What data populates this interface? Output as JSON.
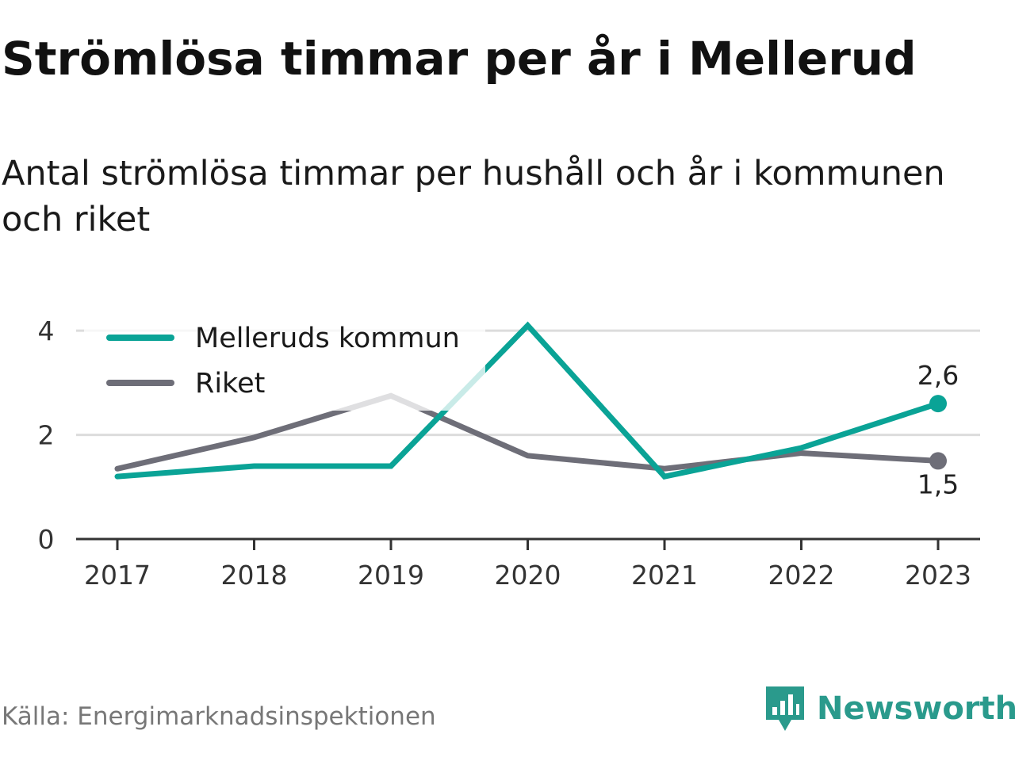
{
  "header": {
    "title": "Strömlösa timmar per år i Mellerud",
    "subtitle": "Antal strömlösa timmar per hushåll och år i kommunen och riket"
  },
  "footer": {
    "source": "Källa: Energimarknadsinspektionen",
    "brand": "Newsworthy",
    "brand_icon": "newsworthy-chart-icon",
    "brand_color": "#2a9a8c"
  },
  "chart_data": {
    "type": "line",
    "x": [
      "2017",
      "2018",
      "2019",
      "2020",
      "2021",
      "2022",
      "2023"
    ],
    "ylim": [
      0,
      4.2
    ],
    "yticks": [
      0,
      2,
      4
    ],
    "ytick_labels": [
      "0",
      "2",
      "4"
    ],
    "grid": true,
    "legend_position": "top-left",
    "series": [
      {
        "name": "Melleruds kommun",
        "color": "#0aa396",
        "values": [
          1.2,
          1.4,
          1.4,
          4.1,
          1.2,
          1.75,
          2.6
        ],
        "end_label": "2,6"
      },
      {
        "name": "Riket",
        "color": "#6e6e78",
        "values": [
          1.35,
          1.95,
          2.75,
          1.6,
          1.35,
          1.65,
          1.5
        ],
        "end_label": "1,5"
      }
    ]
  }
}
